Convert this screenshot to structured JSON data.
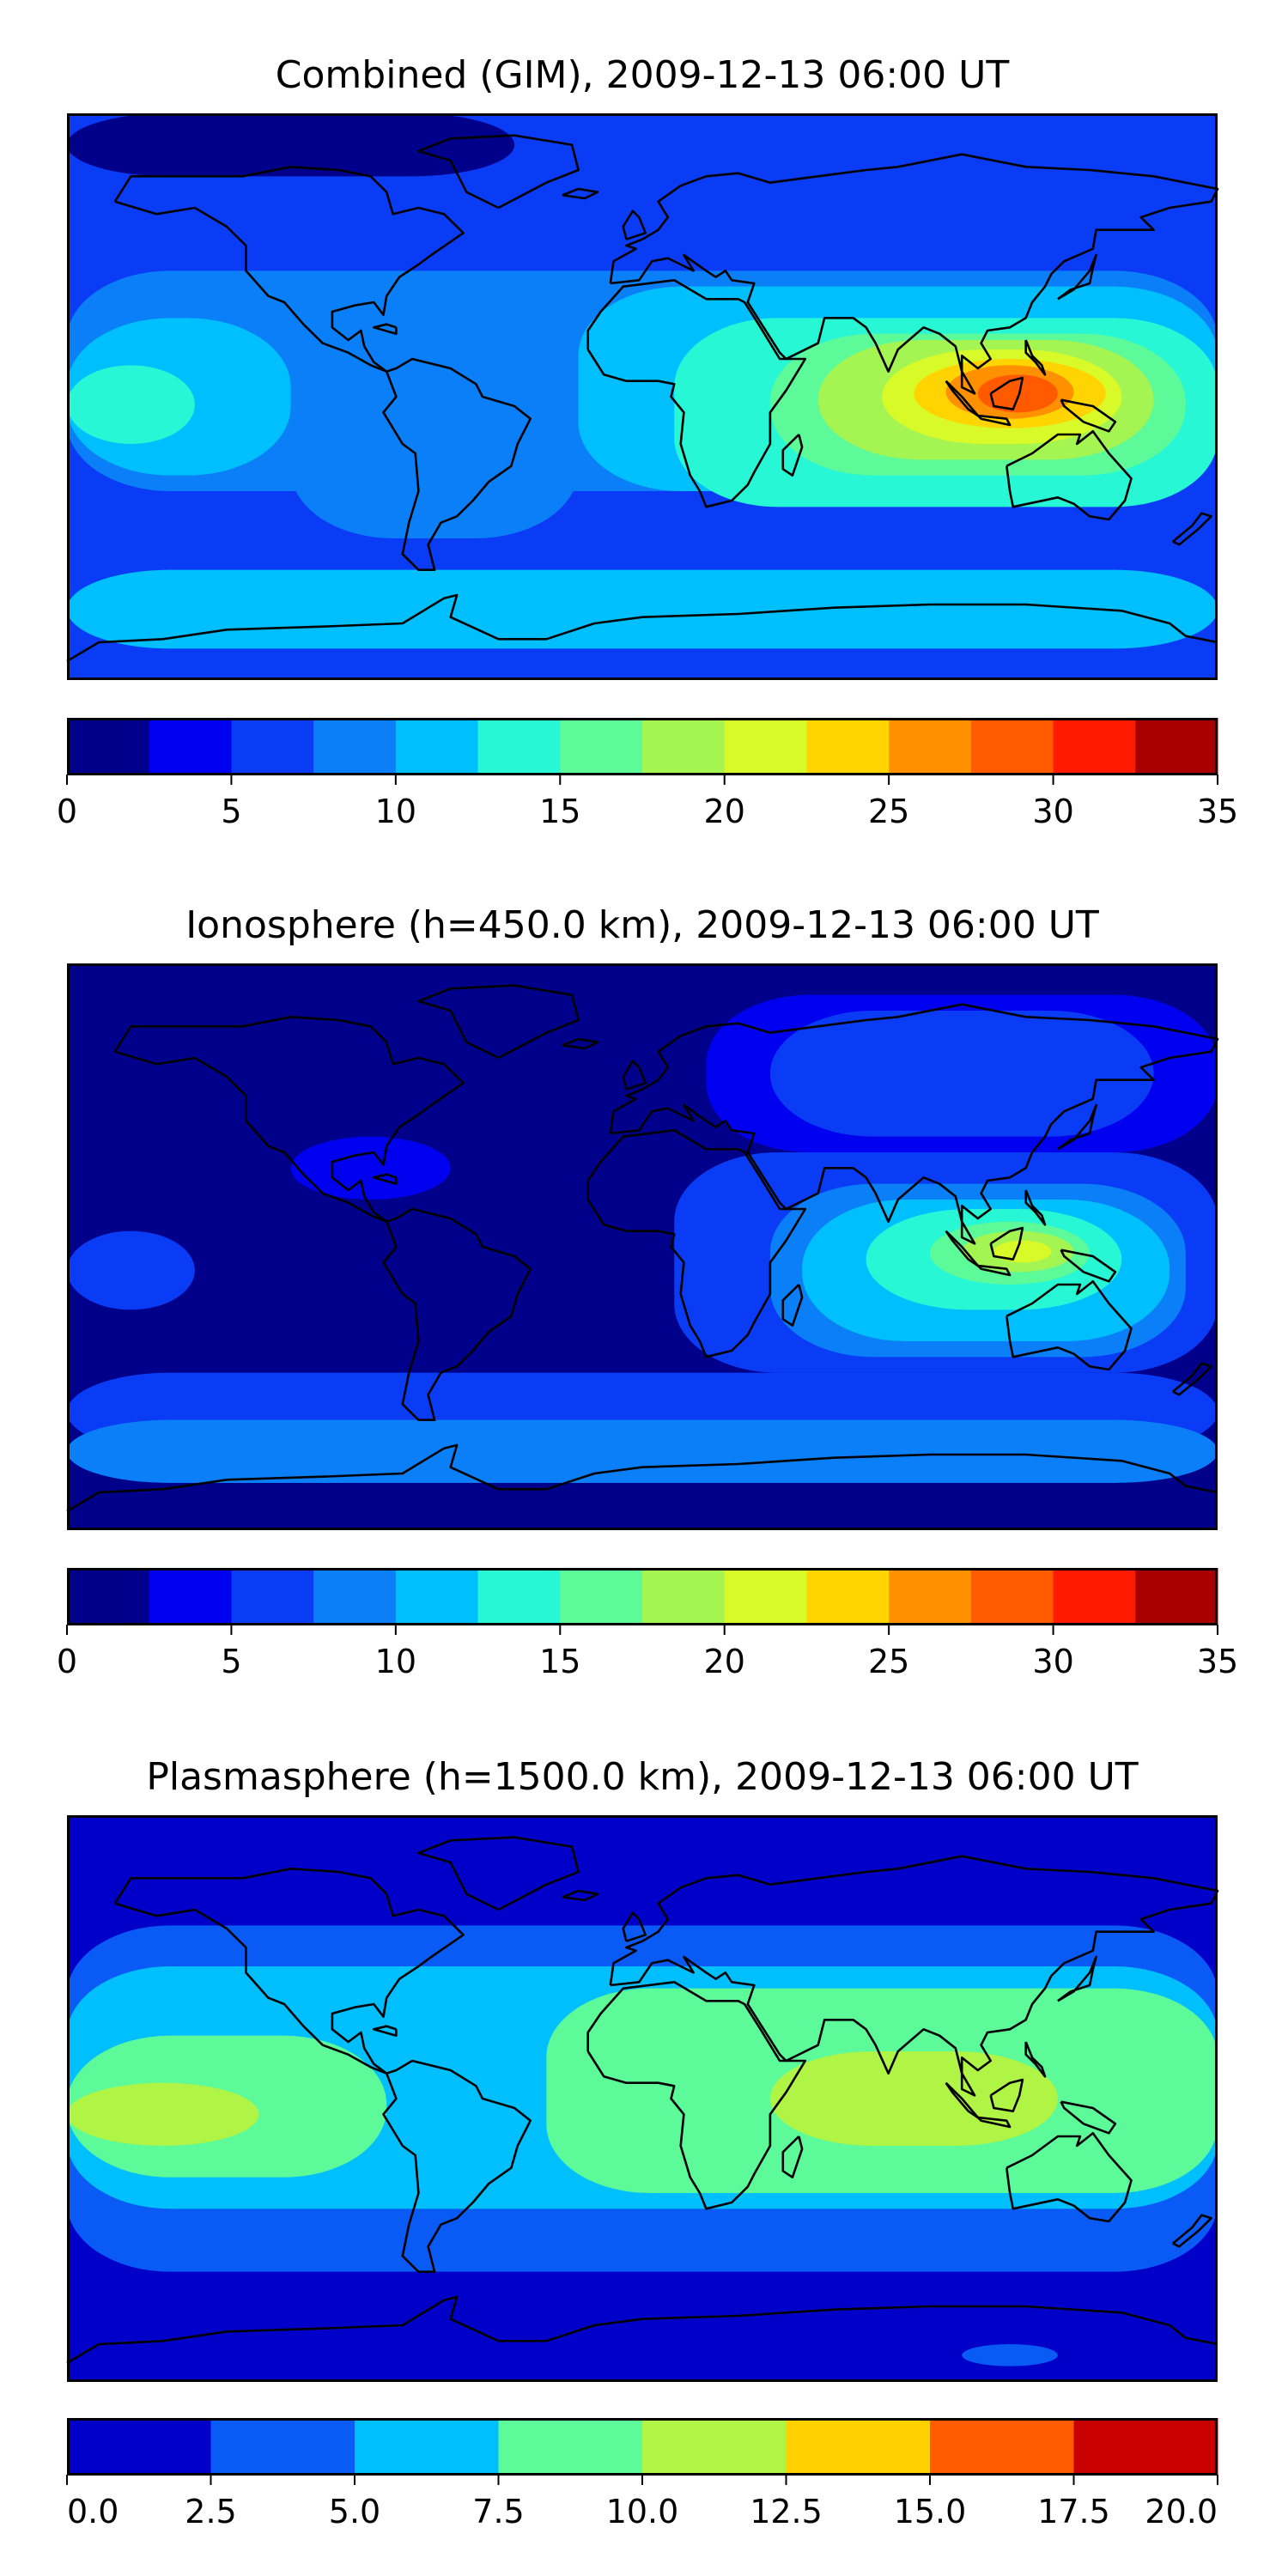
{
  "chart_data": [
    {
      "type": "heatmap",
      "title": "Combined (GIM), 2009-12-13 06:00 UT",
      "levels": [
        0,
        2.5,
        5,
        7.5,
        10,
        12.5,
        15,
        17.5,
        20,
        22.5,
        25,
        27.5,
        30,
        32.5,
        35
      ],
      "colors": [
        "#00008b",
        "#0000f0",
        "#0a3cf5",
        "#0a7ff7",
        "#00bfff",
        "#27f7d5",
        "#5cfa98",
        "#a5f552",
        "#d8fa28",
        "#ffd400",
        "#ff9000",
        "#ff5a00",
        "#ff1a00",
        "#a80000"
      ],
      "colorbar_ticks": [
        "0",
        "5",
        "10",
        "15",
        "20",
        "25",
        "30",
        "35"
      ],
      "colorbar_tick_values": [
        0,
        5,
        10,
        15,
        20,
        25,
        30,
        35
      ],
      "background_level": 2,
      "regions": [
        {
          "level": 0,
          "lon_min": -180,
          "lon_max": -40,
          "lat_min": 70,
          "lat_max": 90
        },
        {
          "level": 3,
          "lon_min": -180,
          "lon_max": 180,
          "lat_min": -30,
          "lat_max": 40
        },
        {
          "level": 4,
          "lon_min": -180,
          "lon_max": -110,
          "lat_min": -25,
          "lat_max": 25
        },
        {
          "level": 4,
          "lon_min": -20,
          "lon_max": 180,
          "lat_min": -30,
          "lat_max": 35
        },
        {
          "level": 3,
          "lon_min": -110,
          "lon_max": -20,
          "lat_min": -45,
          "lat_max": 15
        },
        {
          "level": 5,
          "lon_min": 10,
          "lon_max": 180,
          "lat_min": -35,
          "lat_max": 25
        },
        {
          "level": 6,
          "lon_min": 40,
          "lon_max": 170,
          "lat_min": -25,
          "lat_max": 20
        },
        {
          "level": 7,
          "lon_min": 55,
          "lon_max": 160,
          "lat_min": -20,
          "lat_max": 18
        },
        {
          "level": 8,
          "lon_min": 75,
          "lon_max": 150,
          "lat_min": -15,
          "lat_max": 15
        },
        {
          "level": 9,
          "lon_min": 85,
          "lon_max": 145,
          "lat_min": -10,
          "lat_max": 12
        },
        {
          "level": 10,
          "lon_min": 95,
          "lon_max": 135,
          "lat_min": -7,
          "lat_max": 10
        },
        {
          "level": 11,
          "lon_min": 105,
          "lon_max": 130,
          "lat_min": -5,
          "lat_max": 7
        },
        {
          "level": 4,
          "lon_min": -180,
          "lon_max": 180,
          "lat_min": -80,
          "lat_max": -55
        },
        {
          "level": 5,
          "lon_min": -180,
          "lon_max": -140,
          "lat_min": -15,
          "lat_max": 10
        }
      ]
    },
    {
      "type": "heatmap",
      "title": "Ionosphere  (h=450.0 km), 2009-12-13 06:00 UT",
      "levels": [
        0,
        2.5,
        5,
        7.5,
        10,
        12.5,
        15,
        17.5,
        20,
        22.5,
        25,
        27.5,
        30,
        32.5,
        35
      ],
      "colors": [
        "#00008b",
        "#0000f0",
        "#0a3cf5",
        "#0a7ff7",
        "#00bfff",
        "#27f7d5",
        "#5cfa98",
        "#a5f552",
        "#d8fa28",
        "#ffd400",
        "#ff9000",
        "#ff5a00",
        "#ff1a00",
        "#a80000"
      ],
      "colorbar_ticks": [
        "0",
        "5",
        "10",
        "15",
        "20",
        "25",
        "30",
        "35"
      ],
      "colorbar_tick_values": [
        0,
        5,
        10,
        15,
        20,
        25,
        30,
        35
      ],
      "background_level": 0,
      "regions": [
        {
          "level": 1,
          "lon_min": 20,
          "lon_max": 180,
          "lat_min": 30,
          "lat_max": 80
        },
        {
          "level": 2,
          "lon_min": 40,
          "lon_max": 160,
          "lat_min": 35,
          "lat_max": 75
        },
        {
          "level": 2,
          "lon_min": -180,
          "lon_max": 180,
          "lat_min": -65,
          "lat_max": -40
        },
        {
          "level": 3,
          "lon_min": -180,
          "lon_max": 180,
          "lat_min": -75,
          "lat_max": -55
        },
        {
          "level": 1,
          "lon_min": -110,
          "lon_max": -60,
          "lat_min": 15,
          "lat_max": 35
        },
        {
          "level": 2,
          "lon_min": 10,
          "lon_max": 180,
          "lat_min": -40,
          "lat_max": 30
        },
        {
          "level": 3,
          "lon_min": 40,
          "lon_max": 170,
          "lat_min": -35,
          "lat_max": 20
        },
        {
          "level": 4,
          "lon_min": 50,
          "lon_max": 165,
          "lat_min": -30,
          "lat_max": 15
        },
        {
          "level": 5,
          "lon_min": 70,
          "lon_max": 150,
          "lat_min": -20,
          "lat_max": 12
        },
        {
          "level": 6,
          "lon_min": 90,
          "lon_max": 140,
          "lat_min": -12,
          "lat_max": 8
        },
        {
          "level": 7,
          "lon_min": 100,
          "lon_max": 135,
          "lat_min": -8,
          "lat_max": 5
        },
        {
          "level": 8,
          "lon_min": 110,
          "lon_max": 128,
          "lat_min": -5,
          "lat_max": 2
        },
        {
          "level": 2,
          "lon_min": -180,
          "lon_max": -140,
          "lat_min": -20,
          "lat_max": 5
        }
      ]
    },
    {
      "type": "heatmap",
      "title": "Plasmasphere (h=1500.0 km), 2009-12-13 06:00 UT",
      "levels": [
        0,
        2.5,
        5,
        7.5,
        10,
        12.5,
        15,
        17.5,
        20
      ],
      "colors": [
        "#0000c8",
        "#0a5af5",
        "#00bfff",
        "#5cfa98",
        "#b0f545",
        "#ffd000",
        "#ff5a00",
        "#c80000"
      ],
      "colorbar_ticks": [
        "0.0",
        "2.5",
        "5.0",
        "7.5",
        "10.0",
        "12.5",
        "15.0",
        "17.5",
        "20.0"
      ],
      "colorbar_tick_values": [
        0,
        2.5,
        5,
        7.5,
        10,
        12.5,
        15,
        17.5,
        20
      ],
      "background_level": 0,
      "regions": [
        {
          "level": 1,
          "lon_min": -180,
          "lon_max": 180,
          "lat_min": -55,
          "lat_max": 55
        },
        {
          "level": 2,
          "lon_min": -180,
          "lon_max": 180,
          "lat_min": -35,
          "lat_max": 42
        },
        {
          "level": 3,
          "lon_min": -180,
          "lon_max": -80,
          "lat_min": -25,
          "lat_max": 20
        },
        {
          "level": 3,
          "lon_min": -30,
          "lon_max": 180,
          "lat_min": -30,
          "lat_max": 35
        },
        {
          "level": 4,
          "lon_min": -180,
          "lon_max": -120,
          "lat_min": -15,
          "lat_max": 5
        },
        {
          "level": 4,
          "lon_min": 40,
          "lon_max": 130,
          "lat_min": -15,
          "lat_max": 15
        },
        {
          "level": 1,
          "lon_min": 100,
          "lon_max": 130,
          "lat_min": -85,
          "lat_max": -78
        }
      ]
    }
  ]
}
